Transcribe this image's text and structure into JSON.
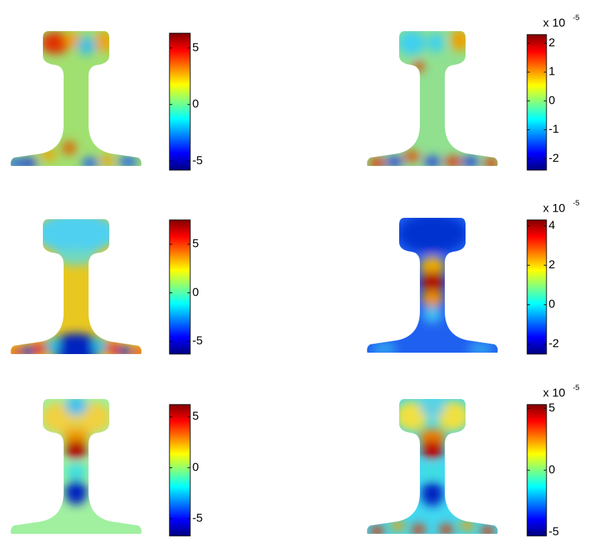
{
  "panels": [
    {
      "colorbar": {
        "clim": [
          -5.8,
          6.3
        ],
        "ticks": [
          5,
          0,
          -5
        ]
      }
    },
    {
      "colorbar": {
        "clim": [
          -2.4,
          2.3
        ],
        "ticks": [
          2,
          1,
          0,
          -1,
          -2
        ],
        "multiplier": "x 10",
        "exponent": "-5"
      }
    },
    {
      "colorbar": {
        "clim": [
          -6.3,
          7.5
        ],
        "ticks": [
          5,
          0,
          -5
        ]
      }
    },
    {
      "colorbar": {
        "clim": [
          -2.5,
          4.3
        ],
        "ticks": [
          4,
          2,
          0,
          -2
        ],
        "multiplier": "x 10",
        "exponent": "-5"
      }
    },
    {
      "colorbar": {
        "clim": [
          -6.7,
          6.2
        ],
        "ticks": [
          5,
          0,
          -5
        ]
      }
    },
    {
      "colorbar": {
        "clim": [
          -5.3,
          5.3
        ],
        "ticks": [
          5,
          0,
          -5
        ],
        "multiplier": "x 10",
        "exponent": "-5"
      }
    }
  ]
}
